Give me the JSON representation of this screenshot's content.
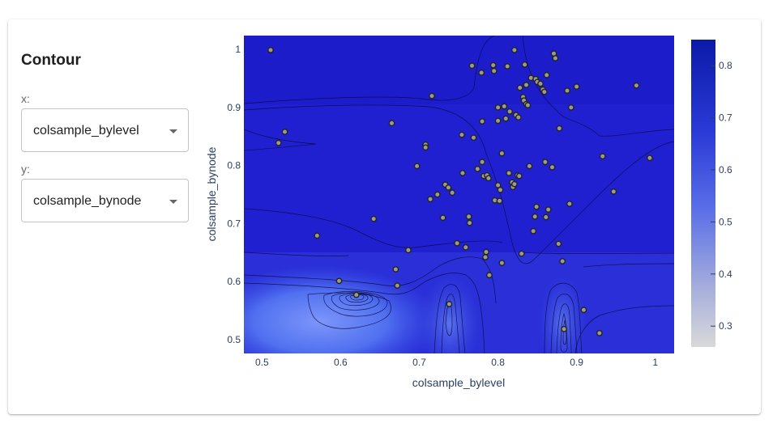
{
  "panel": {
    "title": "Contour",
    "x_label": "x:",
    "y_label": "y:",
    "x_select_value": "colsample_bylevel",
    "y_select_value": "colsample_bynode"
  },
  "colors": {
    "background": "#2020d0",
    "low_region": "#4a6af0",
    "marker_fill": "#9a9a8e",
    "marker_edge": "#222222",
    "contour_line": "#0a0a40",
    "colorscale_low": "#d9d9d9",
    "colorscale_high": "#0c1aa8"
  },
  "chart_data": {
    "type": "contour",
    "xlabel": "colsample_bylevel",
    "ylabel": "colsample_bynode",
    "xlim": [
      0.477,
      1.024
    ],
    "ylim": [
      0.476,
      1.024
    ],
    "x_ticks": [
      "0.5",
      "0.6",
      "0.7",
      "0.8",
      "0.9",
      "1"
    ],
    "y_ticks": [
      "0.5",
      "0.6",
      "0.7",
      "0.8",
      "0.9",
      "1"
    ],
    "colorbar": {
      "range": [
        0.26,
        0.85
      ],
      "ticks": [
        "0.3",
        "0.4",
        "0.5",
        "0.6",
        "0.7",
        "0.8"
      ]
    },
    "points": [
      [
        0.511,
        0.999
      ],
      [
        0.521,
        0.839
      ],
      [
        0.529,
        0.858
      ],
      [
        0.57,
        0.679
      ],
      [
        0.598,
        0.601
      ],
      [
        0.62,
        0.577
      ],
      [
        0.642,
        0.708
      ],
      [
        0.665,
        0.873
      ],
      [
        0.67,
        0.621
      ],
      [
        0.672,
        0.593
      ],
      [
        0.686,
        0.654
      ],
      [
        0.697,
        0.799
      ],
      [
        0.708,
        0.836
      ],
      [
        0.708,
        0.831
      ],
      [
        0.714,
        0.742
      ],
      [
        0.716,
        0.92
      ],
      [
        0.723,
        0.75
      ],
      [
        0.73,
        0.71
      ],
      [
        0.733,
        0.767
      ],
      [
        0.737,
        0.762
      ],
      [
        0.738,
        0.561
      ],
      [
        0.742,
        0.753
      ],
      [
        0.748,
        0.666
      ],
      [
        0.754,
        0.853
      ],
      [
        0.755,
        0.787
      ],
      [
        0.759,
        0.659
      ],
      [
        0.763,
        0.712
      ],
      [
        0.764,
        0.701
      ],
      [
        0.767,
        0.972
      ],
      [
        0.769,
        0.848
      ],
      [
        0.774,
        0.794
      ],
      [
        0.779,
        0.96
      ],
      [
        0.78,
        0.876
      ],
      [
        0.78,
        0.806
      ],
      [
        0.782,
        0.782
      ],
      [
        0.784,
        0.642
      ],
      [
        0.785,
        0.651
      ],
      [
        0.786,
        0.783
      ],
      [
        0.788,
        0.778
      ],
      [
        0.789,
        0.611
      ],
      [
        0.794,
        0.973
      ],
      [
        0.795,
        0.963
      ],
      [
        0.796,
        0.74
      ],
      [
        0.8,
        0.766
      ],
      [
        0.8,
        0.9
      ],
      [
        0.8,
        0.877
      ],
      [
        0.802,
        0.739
      ],
      [
        0.803,
        0.758
      ],
      [
        0.805,
        0.632
      ],
      [
        0.805,
        0.821
      ],
      [
        0.808,
        0.902
      ],
      [
        0.81,
        0.881
      ],
      [
        0.812,
        0.971
      ],
      [
        0.814,
        0.787
      ],
      [
        0.815,
        0.893
      ],
      [
        0.818,
        0.771
      ],
      [
        0.819,
        0.763
      ],
      [
        0.821,
        0.768
      ],
      [
        0.821,
        0.999
      ],
      [
        0.823,
        0.887
      ],
      [
        0.825,
        0.783
      ],
      [
        0.826,
        0.883
      ],
      [
        0.827,
        0.782
      ],
      [
        0.828,
        0.934
      ],
      [
        0.83,
        0.648
      ],
      [
        0.832,
        0.918
      ],
      [
        0.833,
        0.912
      ],
      [
        0.834,
        0.974
      ],
      [
        0.836,
        0.906
      ],
      [
        0.836,
        0.939
      ],
      [
        0.838,
        0.904
      ],
      [
        0.84,
        0.799
      ],
      [
        0.842,
        0.951
      ],
      [
        0.845,
        0.687
      ],
      [
        0.847,
        0.712
      ],
      [
        0.848,
        0.949
      ],
      [
        0.849,
        0.729
      ],
      [
        0.85,
        0.944
      ],
      [
        0.854,
        0.941
      ],
      [
        0.857,
        0.931
      ],
      [
        0.859,
        0.927
      ],
      [
        0.86,
        0.806
      ],
      [
        0.861,
        0.711
      ],
      [
        0.862,
        0.956
      ],
      [
        0.864,
        0.724
      ],
      [
        0.869,
        0.797
      ],
      [
        0.871,
        0.993
      ],
      [
        0.873,
        0.985
      ],
      [
        0.877,
        0.665
      ],
      [
        0.878,
        0.864
      ],
      [
        0.882,
        0.635
      ],
      [
        0.884,
        0.518
      ],
      [
        0.888,
        0.929
      ],
      [
        0.891,
        0.734
      ],
      [
        0.893,
        0.9
      ],
      [
        0.9,
        0.936
      ],
      [
        0.909,
        0.551
      ],
      [
        0.929,
        0.511
      ],
      [
        0.933,
        0.816
      ],
      [
        0.976,
        0.938
      ],
      [
        0.993,
        0.813
      ],
      [
        0.947,
        0.755
      ]
    ]
  }
}
